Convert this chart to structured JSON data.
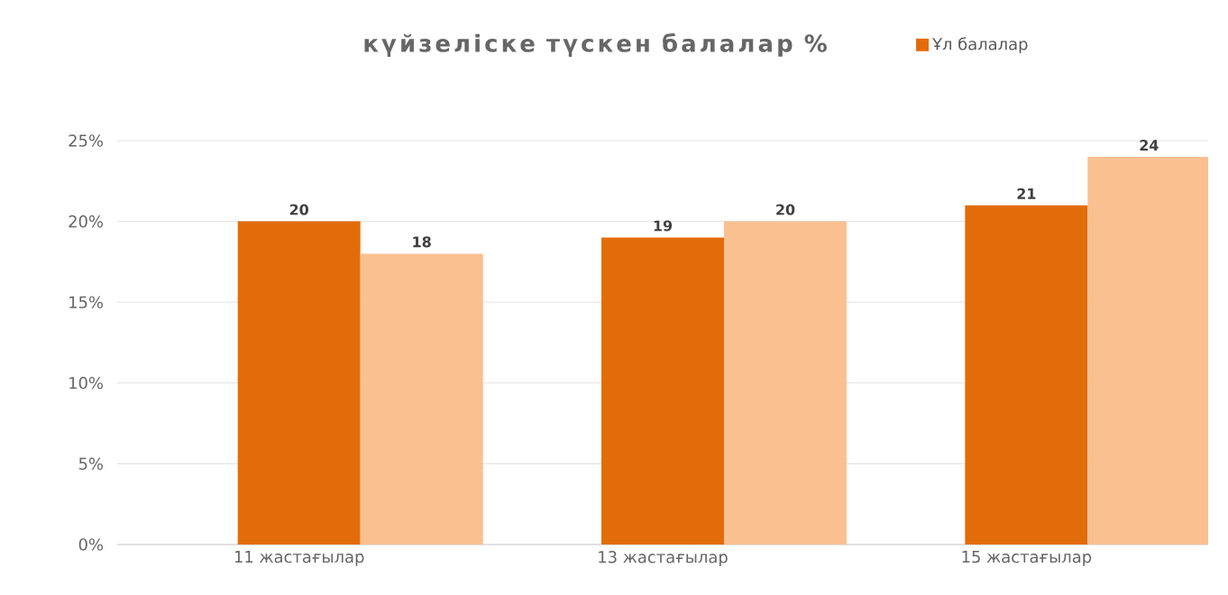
{
  "chart_data": {
    "type": "bar",
    "title": "күйзеліске түскен балалар %",
    "categories": [
      "11 жастағылар",
      "13 жастағылар",
      "15 жастағылар"
    ],
    "series": [
      {
        "name": "Ұл балалар",
        "color": "#e36c0a",
        "values": [
          20,
          19,
          21
        ]
      },
      {
        "color": "#fac090",
        "values": [
          18,
          20,
          24
        ]
      }
    ],
    "ylim": [
      0,
      25
    ],
    "yticks": [
      {
        "value": 0,
        "label": "0%"
      },
      {
        "value": 5,
        "label": "5%"
      },
      {
        "value": 10,
        "label": "10%"
      },
      {
        "value": 15,
        "label": "15%"
      },
      {
        "value": 20,
        "label": "20%"
      },
      {
        "value": 25,
        "label": "25%"
      }
    ],
    "grid": "y",
    "legend": "top",
    "data_labels": true
  }
}
